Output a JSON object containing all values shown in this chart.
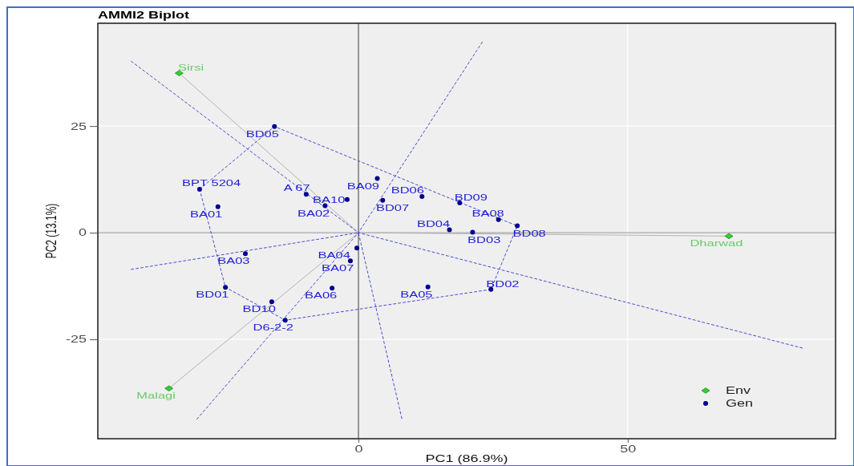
{
  "chart_data": {
    "type": "scatter",
    "title": "AMMI2 Biplot",
    "xlabel": "PC1 (86.9%)",
    "ylabel": "PC2 (13.1%)",
    "xlim": [
      -48.4,
      88.6
    ],
    "ylim": [
      -48.3,
      49.1
    ],
    "xticks": [
      0,
      50
    ],
    "yticks": [
      -25,
      0,
      25
    ],
    "grid": true,
    "legend": "bottom right",
    "ref_lines": [
      {
        "axis": "x",
        "value": 0,
        "color": "#333333"
      },
      {
        "axis": "y",
        "value": 0,
        "color": "#8c8c8c"
      }
    ],
    "series": [
      {
        "type": "line",
        "color": "#b3b3b3",
        "line_style": "solid",
        "x": [
          0,
          -33.3
        ],
        "values": [
          0,
          37.4
        ]
      },
      {
        "type": "line",
        "color": "#b3b3b3",
        "line_style": "solid",
        "x": [
          0,
          -35.2
        ],
        "values": [
          0,
          -36.5
        ]
      },
      {
        "type": "line",
        "color": "#b3b3b3",
        "line_style": "solid",
        "x": [
          0,
          68.8
        ],
        "values": [
          0,
          -0.8
        ]
      },
      {
        "type": "line",
        "color": "#4b4bd2",
        "line_style": "dashed",
        "x": [
          -42.2,
          0,
          82.6
        ],
        "values": [
          40.2,
          0,
          -27.1
        ]
      },
      {
        "type": "line",
        "color": "#4b4bd2",
        "line_style": "dashed",
        "x": [
          -30.0,
          0,
          23.1
        ],
        "values": [
          -43.7,
          0,
          44.9
        ]
      },
      {
        "type": "line",
        "color": "#4b4bd2",
        "line_style": "dashed",
        "x": [
          -42.2,
          0,
          8.1
        ],
        "values": [
          -8.6,
          0,
          -43.8
        ]
      },
      {
        "type": "line",
        "color": "#4b4bd2",
        "line_style": "dashed",
        "x": [
          -29.5,
          -15.6,
          29.5
        ],
        "values": [
          10.2,
          24.9,
          1.6
        ]
      },
      {
        "type": "line",
        "color": "#4b4bd2",
        "line_style": "dashed",
        "x": [
          -29.5,
          -24.7,
          -13.6,
          24.6,
          29.5
        ],
        "values": [
          10.2,
          -12.8,
          -20.5,
          -13.3,
          1.6
        ]
      },
      {
        "name": "Env",
        "color": "#2fd12f",
        "marker": "diamond",
        "x": [
          -33.3,
          -35.2,
          68.8
        ],
        "values": [
          37.4,
          -36.5,
          -0.8
        ],
        "value_labels": [
          "Sirsi",
          "Malagi",
          "Dharwad"
        ]
      },
      {
        "name": "Gen",
        "color": "#00008b",
        "marker": "circle",
        "x": [
          -26.1,
          -6.2,
          -21.0,
          -0.3,
          12.9,
          -4.9,
          -1.5,
          26.0,
          3.5,
          -2.1,
          -24.7,
          24.6,
          21.2,
          16.9,
          -15.6,
          11.8,
          4.5,
          29.5,
          18.8,
          -16.1,
          -29.5,
          -9.7,
          -13.6
        ],
        "values": [
          6.1,
          6.3,
          -4.9,
          -3.6,
          -12.7,
          -13.0,
          -6.6,
          3.1,
          12.7,
          7.8,
          -12.8,
          -13.3,
          0.1,
          0.7,
          24.9,
          8.5,
          7.6,
          1.6,
          7.0,
          -16.2,
          10.2,
          9.0,
          -20.5
        ],
        "value_labels": [
          "BA01",
          "BA02",
          "BA03",
          "BA04",
          "BA05",
          "BA06",
          "BA07",
          "BA08",
          "BA09",
          "BA10",
          "BD01",
          "BD02",
          "BD03",
          "BD04",
          "BD05",
          "BD06",
          "BD07",
          "BD08",
          "BD09",
          "BD10",
          "BPT 5204",
          "A 67",
          "D6-2-2"
        ]
      }
    ]
  }
}
